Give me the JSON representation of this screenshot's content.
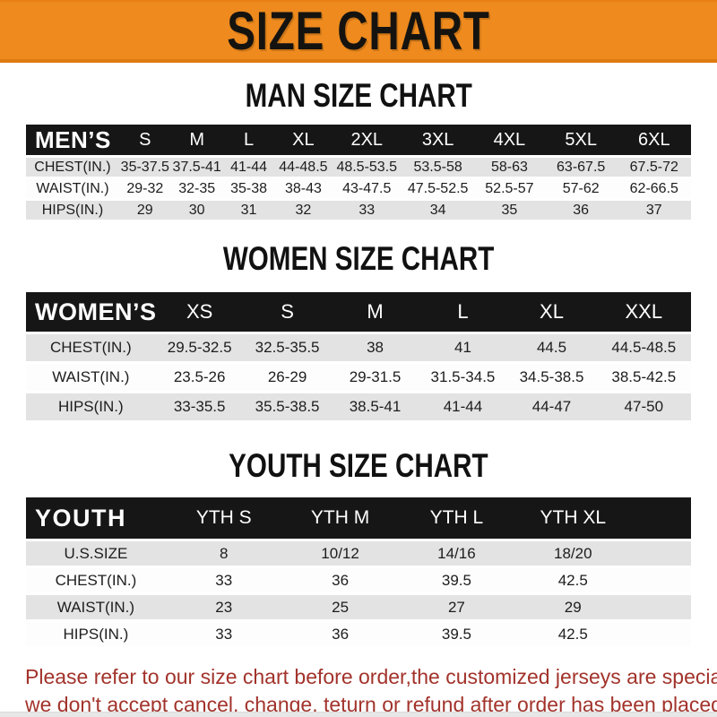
{
  "banner": {
    "title": "SIZE CHART",
    "bg_color": "#ee8a1e",
    "text_color": "#151310"
  },
  "sections": [
    {
      "id": "men",
      "heading": "MAN SIZE CHART",
      "header_label": "MEN’S",
      "columns": [
        "S",
        "M",
        "L",
        "XL",
        "2XL",
        "3XL",
        "4XL",
        "5XL",
        "6XL"
      ],
      "rows": [
        {
          "label": "CHEST(IN.)",
          "values": [
            "35-37.5",
            "37.5-41",
            "41-44",
            "44-48.5",
            "48.5-53.5",
            "53.5-58",
            "58-63",
            "63-67.5",
            "67.5-72"
          ]
        },
        {
          "label": "WAIST(IN.)",
          "values": [
            "29-32",
            "32-35",
            "35-38",
            "38-43",
            "43-47.5",
            "47.5-52.5",
            "52.5-57",
            "57-62",
            "62-66.5"
          ]
        },
        {
          "label": "HIPS(IN.)",
          "values": [
            "29",
            "30",
            "31",
            "32",
            "33",
            "34",
            "35",
            "36",
            "37"
          ]
        }
      ]
    },
    {
      "id": "women",
      "heading": "WOMEN SIZE CHART",
      "header_label": "WOMEN’S",
      "columns": [
        "XS",
        "S",
        "M",
        "L",
        "XL",
        "XXL"
      ],
      "rows": [
        {
          "label": "CHEST(IN.)",
          "values": [
            "29.5-32.5",
            "32.5-35.5",
            "38",
            "41",
            "44.5",
            "44.5-48.5"
          ]
        },
        {
          "label": "WAIST(IN.)",
          "values": [
            "23.5-26",
            "26-29",
            "29-31.5",
            "31.5-34.5",
            "34.5-38.5",
            "38.5-42.5"
          ]
        },
        {
          "label": "HIPS(IN.)",
          "values": [
            "33-35.5",
            "35.5-38.5",
            "38.5-41",
            "41-44",
            "44-47",
            "47-50"
          ]
        }
      ]
    },
    {
      "id": "youth",
      "heading": "YOUTH SIZE CHART",
      "header_label": "YOUTH",
      "columns": [
        "YTH S",
        "YTH M",
        "YTH L",
        "YTH XL"
      ],
      "rows": [
        {
          "label": "U.S.SIZE",
          "values": [
            "8",
            "10/12",
            "14/16",
            "18/20"
          ]
        },
        {
          "label": "CHEST(IN.)",
          "values": [
            "33",
            "36",
            "39.5",
            "42.5"
          ]
        },
        {
          "label": "WAIST(IN.)",
          "values": [
            "23",
            "25",
            "27",
            "29"
          ]
        },
        {
          "label": "HIPS(IN.)",
          "values": [
            "33",
            "36",
            "39.5",
            "42.5"
          ]
        }
      ]
    }
  ],
  "footer": {
    "line1": "Please refer to our size chart before order,the customized jerseys are special products,",
    "line2": "we don't accept cancel, change, teturn or refund after order has been placed!",
    "text_color": "#a2332b"
  },
  "table_colors": {
    "header_bar": "#161616",
    "header_text": "#ffffff",
    "row_gray": "#e3e3e3",
    "row_white": "#fdfdfd"
  }
}
